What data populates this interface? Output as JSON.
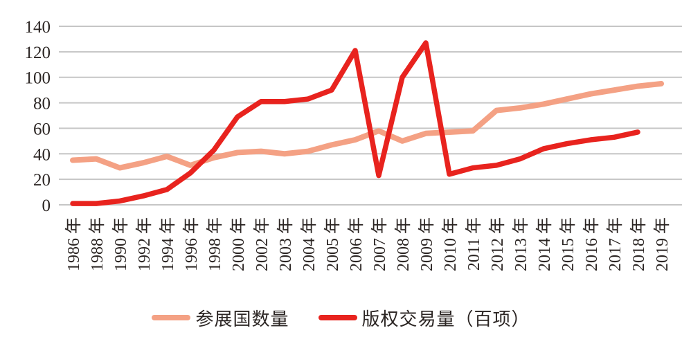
{
  "chart_data": {
    "type": "line",
    "title": "",
    "xlabel": "",
    "ylabel": "",
    "categories": [
      "1986 年",
      "1988 年",
      "1990 年",
      "1992 年",
      "1994 年",
      "1996 年",
      "1998 年",
      "2000 年",
      "2002 年",
      "2003 年",
      "2004 年",
      "2005 年",
      "2006 年",
      "2007 年",
      "2008 年",
      "2009 年",
      "2010 年",
      "2011 年",
      "2012 年",
      "2013 年",
      "2014 年",
      "2015 年",
      "2016 年",
      "2017 年",
      "2018 年",
      "2019 年"
    ],
    "yticks": [
      0,
      20,
      40,
      60,
      80,
      100,
      120,
      140
    ],
    "ylim": [
      0,
      140
    ],
    "grid": true,
    "legend_position": "bottom",
    "series": [
      {
        "name": "参展国数量",
        "color": "#F4A184",
        "values": [
          35,
          36,
          29,
          33,
          38,
          31,
          37,
          41,
          42,
          40,
          42,
          47,
          51,
          58,
          50,
          56,
          57,
          58,
          74,
          76,
          79,
          83,
          87,
          90,
          93,
          95
        ]
      },
      {
        "name": "版权交易量（百项）",
        "color": "#E8231E",
        "values": [
          1,
          1,
          3,
          7,
          12,
          25,
          43,
          69,
          81,
          81,
          83,
          90,
          121,
          23,
          100,
          127,
          24,
          29,
          31,
          36,
          44,
          48,
          51,
          53,
          57,
          null
        ]
      }
    ],
    "colors": {
      "gridline": "#C6C6C6",
      "axis_text": "#2B2523",
      "background": "#FFFFFF"
    }
  }
}
